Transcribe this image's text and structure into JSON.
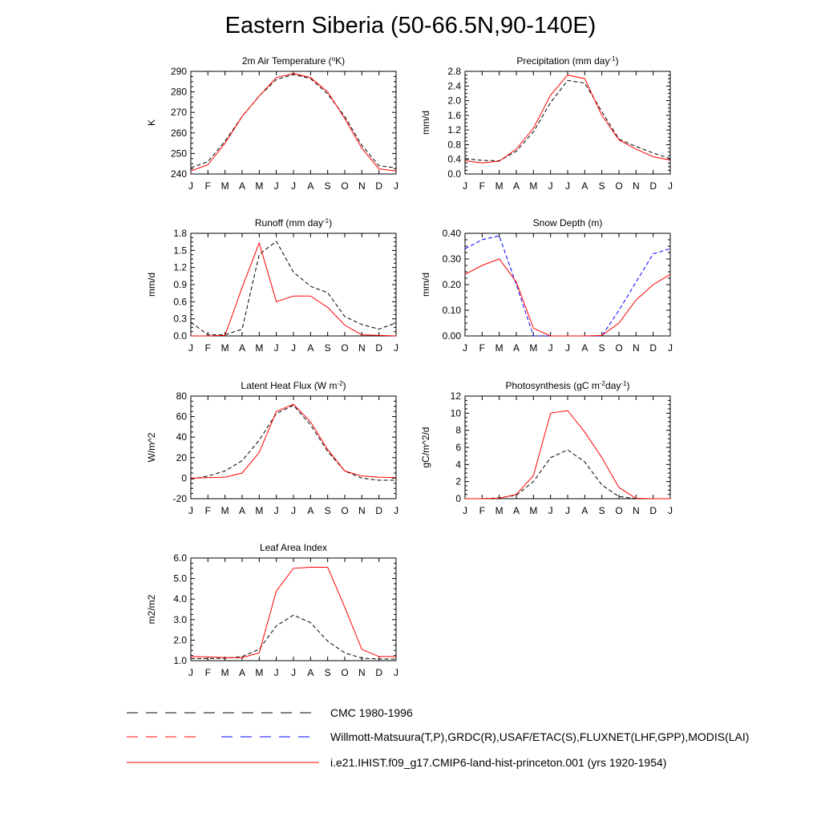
{
  "figure": {
    "title": "Eastern Siberia (50-66.5N,90-140E)"
  },
  "chart_data": [
    {
      "type": "line",
      "title": "2m Air Temperature (°K)",
      "ylabel": "K",
      "ylim": [
        240,
        290
      ],
      "yticks": [
        240,
        250,
        260,
        270,
        280,
        290
      ],
      "ytick_labels": [
        "240",
        "250",
        "260",
        "270",
        "280",
        "290"
      ],
      "categories": [
        "J",
        "F",
        "M",
        "A",
        "M",
        "J",
        "J",
        "A",
        "S",
        "O",
        "N",
        "D",
        "J"
      ],
      "series": [
        {
          "style": "black-dashed",
          "color": "#000000",
          "values": [
            243,
            246,
            256,
            268,
            278,
            286,
            288.5,
            286.5,
            279,
            268,
            254,
            244,
            243
          ]
        },
        {
          "style": "red-solid",
          "color": "#ff0000",
          "values": [
            241.5,
            244.5,
            255,
            268,
            278,
            287,
            289,
            287,
            280,
            267,
            252.5,
            242.5,
            241.5
          ]
        }
      ]
    },
    {
      "type": "line",
      "title": "Precipitation (mm day⁻¹)",
      "ylabel": "mm/d",
      "ylim": [
        0,
        2.8
      ],
      "yticks": [
        0,
        0.4,
        0.8,
        1.2,
        1.6,
        2.0,
        2.4,
        2.8
      ],
      "ytick_labels": [
        "0.0",
        "0.4",
        "0.8",
        "1.2",
        "1.6",
        "2.0",
        "2.4",
        "2.8"
      ],
      "categories": [
        "J",
        "F",
        "M",
        "A",
        "M",
        "J",
        "J",
        "A",
        "S",
        "O",
        "N",
        "D",
        "J"
      ],
      "series": [
        {
          "style": "black-dashed",
          "color": "#000000",
          "values": [
            0.42,
            0.37,
            0.36,
            0.62,
            1.15,
            1.95,
            2.55,
            2.48,
            1.7,
            0.95,
            0.75,
            0.57,
            0.42
          ]
        },
        {
          "style": "red-solid",
          "color": "#ff0000",
          "values": [
            0.36,
            0.3,
            0.35,
            0.68,
            1.25,
            2.15,
            2.7,
            2.6,
            1.6,
            0.93,
            0.68,
            0.47,
            0.38
          ]
        }
      ]
    },
    {
      "type": "line",
      "title": "Runoff (mm day⁻¹)",
      "ylabel": "mm/d",
      "ylim": [
        0,
        1.8
      ],
      "yticks": [
        0,
        0.3,
        0.6,
        0.9,
        1.2,
        1.5,
        1.8
      ],
      "ytick_labels": [
        "0.0",
        "0.3",
        "0.6",
        "0.9",
        "1.2",
        "1.5",
        "1.8"
      ],
      "categories": [
        "J",
        "F",
        "M",
        "A",
        "M",
        "J",
        "J",
        "A",
        "S",
        "O",
        "N",
        "D",
        "J"
      ],
      "series": [
        {
          "style": "black-dashed",
          "color": "#000000",
          "values": [
            0.24,
            0.02,
            0.02,
            0.12,
            1.43,
            1.66,
            1.12,
            0.87,
            0.76,
            0.34,
            0.2,
            0.12,
            0.23
          ]
        },
        {
          "style": "red-solid",
          "color": "#ff0000",
          "values": [
            0.0,
            0.0,
            0.01,
            0.85,
            1.63,
            0.6,
            0.7,
            0.7,
            0.5,
            0.19,
            0.02,
            0.01,
            0.0
          ]
        }
      ]
    },
    {
      "type": "line",
      "title": "Snow Depth (m)",
      "ylabel": "mm/d",
      "ylim": [
        0,
        0.4
      ],
      "yticks": [
        0,
        0.1,
        0.2,
        0.3,
        0.4
      ],
      "ytick_labels": [
        "0.00",
        "0.10",
        "0.20",
        "0.30",
        "0.40"
      ],
      "categories": [
        "J",
        "F",
        "M",
        "A",
        "M",
        "J",
        "J",
        "A",
        "S",
        "O",
        "N",
        "D",
        "J"
      ],
      "series": [
        {
          "style": "black-dashed",
          "color": "#000000",
          "values": [
            0,
            0,
            0,
            0,
            0,
            0,
            0,
            0,
            0,
            0,
            0,
            0,
            0
          ]
        },
        {
          "style": "blue-dashed",
          "color": "#0000ff",
          "values": [
            0.34,
            0.375,
            0.39,
            0.2,
            0.0,
            0.0,
            0.0,
            0.0,
            0.0,
            0.1,
            0.21,
            0.32,
            0.34
          ]
        },
        {
          "style": "red-solid",
          "color": "#ff0000",
          "values": [
            0.24,
            0.275,
            0.3,
            0.21,
            0.03,
            0.0,
            0.0,
            0.0,
            0.002,
            0.05,
            0.14,
            0.2,
            0.24
          ]
        }
      ]
    },
    {
      "type": "line",
      "title": "Latent Heat Flux (W m⁻²)",
      "ylabel": "W/m^2",
      "ylim": [
        -20,
        80
      ],
      "yticks": [
        -20,
        0,
        20,
        40,
        60,
        80
      ],
      "ytick_labels": [
        "-20",
        "0",
        "20",
        "40",
        "60",
        "80"
      ],
      "categories": [
        "J",
        "F",
        "M",
        "A",
        "M",
        "J",
        "J",
        "A",
        "S",
        "O",
        "N",
        "D",
        "J"
      ],
      "series": [
        {
          "style": "black-dashed",
          "color": "#000000",
          "values": [
            -1,
            2,
            7,
            17,
            37,
            63,
            71,
            52,
            26,
            7,
            0,
            -2,
            -2
          ]
        },
        {
          "style": "red-solid",
          "color": "#ff0000",
          "values": [
            0,
            0.5,
            1,
            5,
            25,
            65,
            72,
            55,
            28,
            7,
            2,
            1,
            0.5
          ]
        }
      ]
    },
    {
      "type": "line",
      "title": "Photosynthesis (gC m⁻²day⁻¹)",
      "ylabel": "gC/m^2/d",
      "ylim": [
        0,
        12
      ],
      "yticks": [
        0,
        2,
        4,
        6,
        8,
        10,
        12
      ],
      "ytick_labels": [
        "0",
        "2",
        "4",
        "6",
        "8",
        "10",
        "12"
      ],
      "categories": [
        "J",
        "F",
        "M",
        "A",
        "M",
        "J",
        "J",
        "A",
        "S",
        "O",
        "N",
        "D",
        "J"
      ],
      "series": [
        {
          "style": "black-dashed",
          "color": "#000000",
          "values": [
            0,
            0,
            0.1,
            0.4,
            2.0,
            4.8,
            5.7,
            4.3,
            1.6,
            0.25,
            0,
            0,
            0
          ]
        },
        {
          "style": "red-solid",
          "color": "#ff0000",
          "values": [
            0,
            0,
            0.05,
            0.5,
            2.7,
            10.0,
            10.3,
            7.8,
            4.8,
            1.3,
            0.05,
            0,
            0
          ]
        }
      ]
    },
    {
      "type": "line",
      "title": "Leaf Area Index",
      "ylabel": "m2/m2",
      "ylim": [
        1.0,
        6.0
      ],
      "yticks": [
        1,
        2,
        3,
        4,
        5,
        6
      ],
      "ytick_labels": [
        "1.0",
        "2.0",
        "3.0",
        "4.0",
        "5.0",
        "6.0"
      ],
      "categories": [
        "J",
        "F",
        "M",
        "A",
        "M",
        "J",
        "J",
        "A",
        "S",
        "O",
        "N",
        "D",
        "J"
      ],
      "series": [
        {
          "style": "black-dashed",
          "color": "#000000",
          "values": [
            1.1,
            1.1,
            1.12,
            1.2,
            1.55,
            2.7,
            3.22,
            2.85,
            1.95,
            1.38,
            1.12,
            1.08,
            1.08
          ]
        },
        {
          "style": "red-solid",
          "color": "#ff0000",
          "values": [
            1.2,
            1.18,
            1.15,
            1.15,
            1.38,
            4.4,
            5.5,
            5.55,
            5.55,
            3.6,
            1.55,
            1.2,
            1.2
          ]
        }
      ]
    }
  ],
  "legend": [
    {
      "label": "CMC 1980-1996",
      "style": "black-dashed",
      "colors": [
        "#000000"
      ]
    },
    {
      "label": "Willmott-Matsuura(T,P),GRDC(R),USAF/ETAC(S),FLUXNET(LHF,GPP),MODIS(LAI)",
      "style": "red-blue-dashed",
      "colors": [
        "#ff0000",
        "#0000ff"
      ]
    },
    {
      "label": "i.e21.IHIST.f09_g17.CMIP6-land-hist-princeton.001 (yrs 1920-1954)",
      "style": "red-solid",
      "colors": [
        "#ff0000"
      ]
    }
  ]
}
